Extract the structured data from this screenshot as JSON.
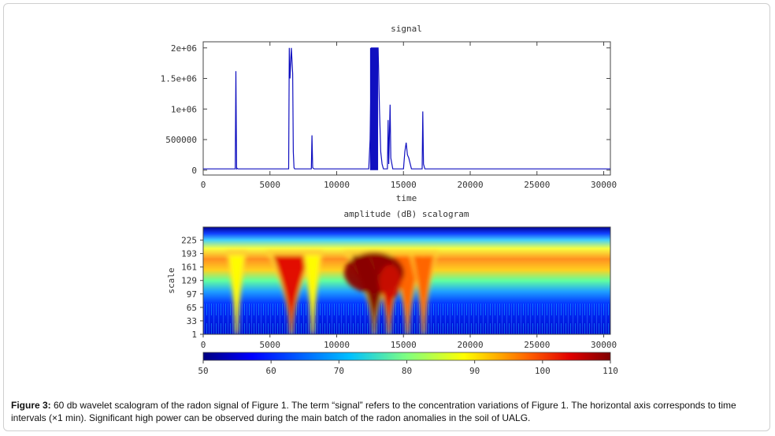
{
  "chart_data": [
    {
      "type": "line",
      "title": "signal",
      "xlabel": "time",
      "ylabel": "",
      "xlim": [
        0,
        30500
      ],
      "ylim": [
        -80000,
        2100000
      ],
      "x_ticks": [
        "0",
        "5000",
        "10000",
        "15000",
        "20000",
        "25000",
        "30000"
      ],
      "y_ticks": [
        "0",
        "500000",
        "1e+06",
        "1.5e+06",
        "2e+06"
      ],
      "series": [
        {
          "color": "#1010c0",
          "x": [
            0,
            2400,
            2450,
            2500,
            2550,
            2600,
            6400,
            6450,
            6500,
            6600,
            6700,
            6750,
            6800,
            6850,
            8100,
            8150,
            8200,
            8300,
            12400,
            12500,
            12600,
            13100,
            13200,
            13300,
            13400,
            13500,
            13800,
            13850,
            13900,
            14000,
            14050,
            14200,
            15000,
            15100,
            15200,
            15300,
            15400,
            15600,
            16400,
            16450,
            16500,
            16600,
            30500
          ],
          "y": [
            20000,
            20000,
            1620000,
            20000,
            30000,
            20000,
            20000,
            2000000,
            1500000,
            2000000,
            1580000,
            300000,
            40000,
            20000,
            20000,
            570000,
            40000,
            20000,
            20000,
            500000,
            2000000,
            2000000,
            1000000,
            300000,
            100000,
            20000,
            20000,
            820000,
            100000,
            1070000,
            200000,
            20000,
            20000,
            300000,
            450000,
            250000,
            200000,
            20000,
            20000,
            960000,
            100000,
            20000,
            20000
          ]
        }
      ]
    },
    {
      "type": "heatmap",
      "title": "amplitude (dB) scalogram",
      "xlabel": "",
      "ylabel": "scale",
      "xlim": [
        0,
        30500
      ],
      "ylim": [
        1,
        256
      ],
      "x_ticks": [
        "0",
        "5000",
        "10000",
        "15000",
        "20000",
        "25000",
        "30000"
      ],
      "y_ticks": [
        "1",
        "33",
        "65",
        "97",
        "129",
        "161",
        "193",
        "225"
      ],
      "colorbar": {
        "min": 50,
        "max": 110,
        "ticks": [
          "50",
          "60",
          "70",
          "80",
          "90",
          "100",
          "110"
        ]
      },
      "hotspots": [
        {
          "time": 2500,
          "peak_db": 85
        },
        {
          "time": 6600,
          "peak_db": 102
        },
        {
          "time": 8200,
          "peak_db": 85
        },
        {
          "time": 12800,
          "peak_db": 108
        },
        {
          "time": 13900,
          "peak_db": 100
        },
        {
          "time": 15300,
          "peak_db": 96
        },
        {
          "time": 16500,
          "peak_db": 90
        }
      ]
    }
  ],
  "caption": {
    "label": "Figure 3:",
    "text": " 60 db wavelet scalogram of the radon signal of Figure 1. The term “signal” refers to the concentration variations of Figure 1. The horizontal axis corresponds to time intervals (×1 min). Significant high power can be observed during the main batch of the radon anomalies in the soil of UALG."
  }
}
